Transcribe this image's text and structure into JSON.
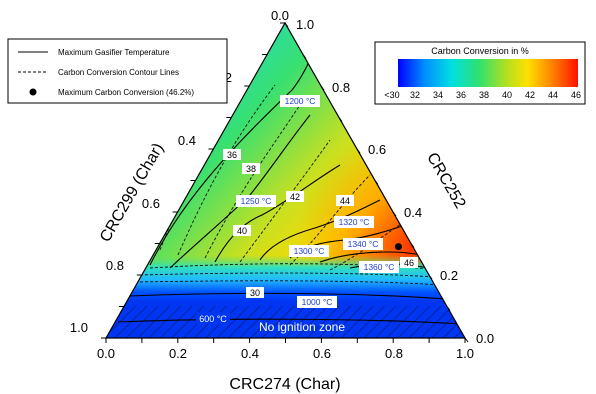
{
  "chart_data": {
    "type": "ternary-contour",
    "axes": {
      "bottom": {
        "label": "CRC274 (Char)",
        "ticks": [
          "0.0",
          "0.2",
          "0.4",
          "0.6",
          "0.8",
          "1.0"
        ]
      },
      "left": {
        "label": "CRC299 (Char)",
        "ticks": [
          "1.0",
          "0.8",
          "0.6",
          "0.4",
          "0.2",
          "0.0"
        ]
      },
      "right": {
        "label": "CRC252",
        "ticks": [
          "0.0",
          "0.2",
          "0.4",
          "0.6",
          "0.8",
          "1.0"
        ]
      }
    },
    "colorbar": {
      "title": "Carbon Conversion in %",
      "tick_labels": [
        "<30",
        "32",
        "34",
        "36",
        "38",
        "40",
        "42",
        "44",
        "46"
      ],
      "range": [
        30,
        47
      ]
    },
    "legend": {
      "position": "top-left",
      "items": [
        {
          "label": "Maximum Gasifier Temperature",
          "style": "solid"
        },
        {
          "label": "Carbon Conversion Contour Lines",
          "style": "dashed"
        },
        {
          "label": "Maximum Carbon Conversion (46.2%)",
          "style": "dot"
        }
      ]
    },
    "temperature_labels": [
      "600 °C",
      "1000 °C",
      "1200 °C",
      "1250 °C",
      "1300 °C",
      "1320 °C",
      "1340 °C",
      "1360 °C"
    ],
    "conversion_labels": [
      "30",
      "36",
      "38",
      "40",
      "42",
      "44",
      "46"
    ],
    "no_ignition_label": "No ignition zone",
    "maximum_point": {
      "CRC274": 0.67,
      "CRC252": 0.29,
      "CRC299": 0.04,
      "value": 46.2
    }
  }
}
